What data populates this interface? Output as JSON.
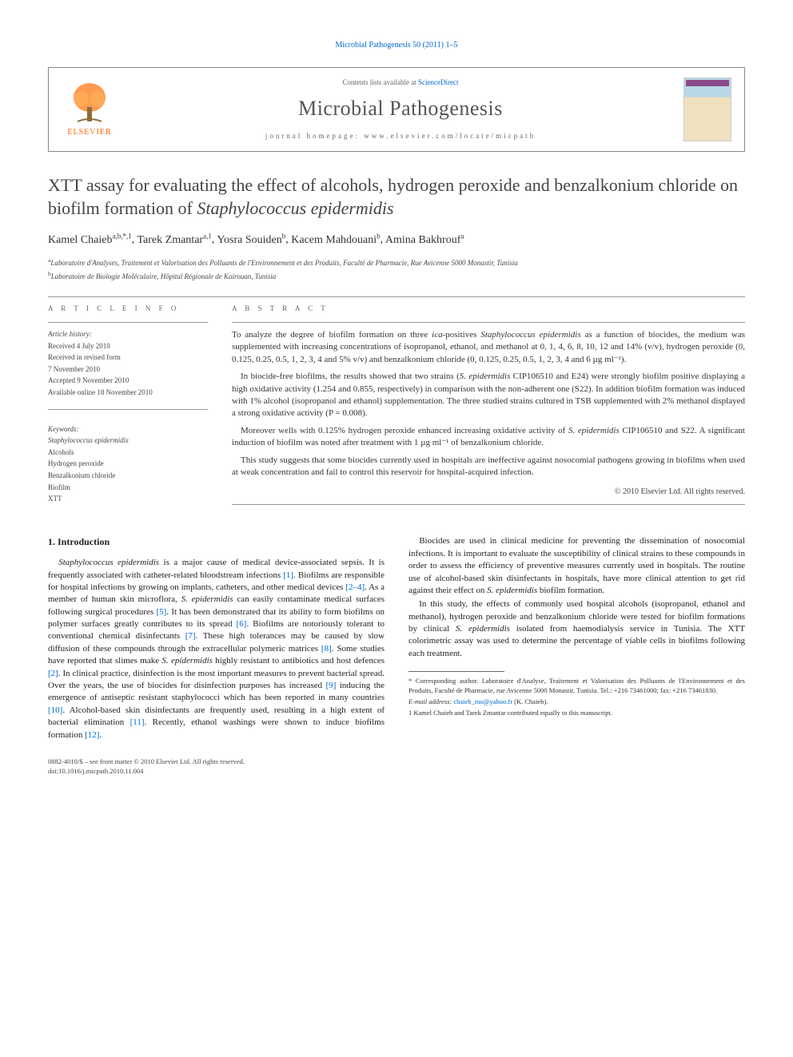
{
  "running_head": {
    "journal": "Microbial Pathogenesis",
    "volume": "50 (2011) 1–5"
  },
  "header": {
    "contents_text": "Contents lists available at",
    "contents_link": "ScienceDirect",
    "journal_name": "Microbial Pathogenesis",
    "homepage_label": "journal homepage:",
    "homepage_url": "www.elsevier.com/locate/micpath",
    "publisher_logo_text": "ELSEVIER",
    "logo_fill": "#ff8833",
    "logo_trunk": "#8b6b3a"
  },
  "title": {
    "text_plain": "XTT assay for evaluating the effect of alcohols, hydrogen peroxide and benzalkonium chloride on biofilm formation of ",
    "text_italic": "Staphylococcus epidermidis",
    "font_size": 22,
    "color": "#444444"
  },
  "authors": [
    {
      "name": "Kamel Chaieb",
      "marks": "a,b,*,1"
    },
    {
      "name": "Tarek Zmantar",
      "marks": "a,1"
    },
    {
      "name": "Yosra Souiden",
      "marks": "b"
    },
    {
      "name": "Kacem Mahdouani",
      "marks": "b"
    },
    {
      "name": "Amina Bakhrouf",
      "marks": "a"
    }
  ],
  "affiliations": [
    {
      "mark": "a",
      "text": "Laboratoire d'Analyses, Traitement et Valorisation des Polluants de l'Environnement et des Produits, Faculté de Pharmacie, Rue Avicenne 5000 Monastir, Tunisia"
    },
    {
      "mark": "b",
      "text": "Laboratoire de Biologie Moléculaire, Hôpital Régionale de Kairouan, Tunisia"
    }
  ],
  "article_info": {
    "label": "A R T I C L E   I N F O",
    "history_label": "Article history:",
    "received": "Received 4 July 2010",
    "revised_label": "Received in revised form",
    "revised_date": "7 November 2010",
    "accepted": "Accepted 9 November 2010",
    "online": "Available online 18 November 2010",
    "keywords_label": "Keywords:",
    "keywords": [
      "Staphylococcus epidermidis",
      "Alcohols",
      "Hydrogen peroxide",
      "Benzalkonium chloride",
      "Biofilm",
      "XTT"
    ]
  },
  "abstract": {
    "label": "A B S T R A C T",
    "paragraphs": [
      "To analyze the degree of biofilm formation on three ica-positives Staphylococcus epidermidis as a function of biocides, the medium was supplemented with increasing concentrations of isopropanol, ethanol, and methanol at 0, 1, 4, 6, 8, 10, 12 and 14% (v/v), hydrogen peroxide (0, 0.125, 0.25, 0.5, 1, 2, 3, 4 and 5% v/v) and benzalkonium chloride (0, 0.125, 0.25, 0.5, 1, 2, 3, 4 and 6 µg ml⁻¹).",
      "In biocide-free biofilms, the results showed that two strains (S. epidermidis CIP106510 and E24) were strongly biofilm positive displaying a high oxidative activity (1.254 and 0.855, respectively) in comparison with the non-adherent one (S22). In addition biofilm formation was induced with 1% alcohol (isopropanol and ethanol) supplementation. The three studied strains cultured in TSB supplemented with 2% methanol displayed a strong oxidative activity (P = 0.008).",
      "Moreover wells with 0.125% hydrogen peroxide enhanced increasing oxidative activity of S. epidermidis CIP106510 and S22. A significant induction of biofilm was noted after treatment with 1 µg ml⁻¹ of benzalkonium chloride.",
      "This study suggests that some biocides currently used in hospitals are ineffective against nosocomial pathogens growing in biofilms when used at weak concentration and fail to control this reservoir for hospital-acquired infection."
    ],
    "copyright": "© 2010 Elsevier Ltd. All rights reserved."
  },
  "body": {
    "section_number": "1.",
    "section_title": "Introduction",
    "paragraphs": [
      "Staphylococcus epidermidis is a major cause of medical device-associated sepsis. It is frequently associated with catheter-related bloodstream infections [1]. Biofilms are responsible for hospital infections by growing on implants, catheters, and other medical devices [2–4]. As a member of human skin microflora, S. epidermidis can easily contaminate medical surfaces following surgical procedures [5]. It has been demonstrated that its ability to form biofilms on polymer surfaces greatly contributes to its spread [6]. Biofilms are notoriously tolerant to conventional chemical disinfectants [7]. These high tolerances may be caused by slow diffusion of these compounds through the extracellular polymeric matrices [8]. Some studies have reported that slimes make S. epidermidis highly resistant to antibiotics and host defences [2]. In clinical practice, disinfection is the most important measures to prevent bacterial spread. Over the years, the use of biocides for disinfection purposes has increased [9] inducing the emergence of antiseptic resistant staphylococci which has been reported in many countries [10]. Alcohol-based skin disinfectants are frequently used, resulting in a high extent of bacterial elimination [11]. Recently, ethanol washings were shown to induce biofilms formation [12].",
      "Biocides are used in clinical medicine for preventing the dissemination of nosocomial infections. It is important to evaluate the susceptibility of clinical strains to these compounds in order to assess the efficiency of preventive measures currently used in hospitals. The routine use of alcohol-based skin disinfectants in hospitals, have more clinical attention to get rid against their effect on S. epidermidis biofilm formation.",
      "In this study, the effects of commonly used hospital alcohols (isopropanol, ethanol and methanol), hydrogen peroxide and benzalkonium chloride were tested for biofilm formations by clinical S. epidermidis isolated from haemodialysis service in Tunisia. The XTT colorimetric assay was used to determine the percentage of viable cells in biofilms following each treatment."
    ],
    "ref_links": [
      "[1]",
      "[2–4]",
      "[5]",
      "[6]",
      "[7]",
      "[8]",
      "[2]",
      "[9]",
      "[10]",
      "[11]",
      "[12]"
    ],
    "ref_color": "#0066cc"
  },
  "footnotes": {
    "corresponding": "* Corresponding author. Laboratoire d'Analyse, Traitement et Valorisation des Polluants de l'Environnement et des Produits, Faculté de Pharmacie, rue Avicenne 5000 Monastir, Tunisia. Tel.: +216 73461000; fax: +216 73461830.",
    "email_label": "E-mail address:",
    "email": "chaieb_mo@yahoo.fr",
    "email_author": "(K. Chaieb).",
    "equal": "1  Kamel Chaieb and Tarek Zmantar contributed equally to this manuscript."
  },
  "publisher": {
    "line1": "0882-4010/$ – see front matter © 2010 Elsevier Ltd. All rights reserved.",
    "line2": "doi:10.1016/j.micpath.2010.11.004"
  },
  "colors": {
    "link": "#0066cc",
    "text": "#222222",
    "border": "#888888",
    "orange": "#ff6600"
  }
}
